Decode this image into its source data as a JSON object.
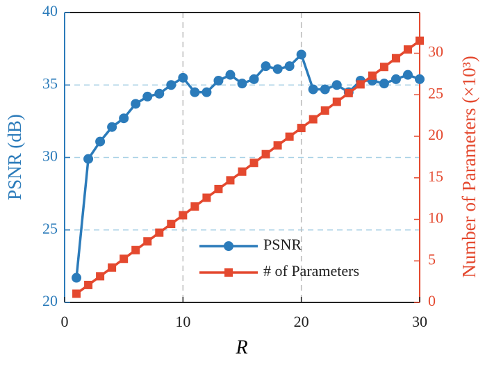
{
  "chart_data": {
    "type": "line",
    "xlabel": "R",
    "ylabel": "PSNR (dB)",
    "y2label": "Number of Parameters (×10³)",
    "x": [
      1,
      2,
      3,
      4,
      5,
      6,
      7,
      8,
      9,
      10,
      11,
      12,
      13,
      14,
      15,
      16,
      17,
      18,
      19,
      20,
      21,
      22,
      23,
      24,
      25,
      26,
      27,
      28,
      29,
      30
    ],
    "series": [
      {
        "name": "PSNR",
        "color": "#2b7bba",
        "marker": "circle",
        "values": [
          21.7,
          29.9,
          31.1,
          32.1,
          32.7,
          33.7,
          34.2,
          34.4,
          35.0,
          35.5,
          34.5,
          34.5,
          35.3,
          35.7,
          35.1,
          35.4,
          36.3,
          36.1,
          36.3,
          37.1,
          34.7,
          34.7,
          35.0,
          34.5,
          35.3,
          35.3,
          35.1,
          35.4,
          35.7,
          35.4
        ]
      },
      {
        "name": "# of Parameters",
        "color": "#e4492f",
        "marker": "square",
        "axis": "y2",
        "values": [
          1.05,
          2.1,
          3.15,
          4.2,
          5.25,
          6.3,
          7.35,
          8.4,
          9.45,
          10.5,
          11.55,
          12.6,
          13.65,
          14.7,
          15.75,
          16.8,
          17.85,
          18.9,
          19.95,
          21,
          22.05,
          23.1,
          24.15,
          25.2,
          26.25,
          27.3,
          28.35,
          29.4,
          30.45,
          31.5
        ]
      }
    ],
    "xlim": [
      0,
      30
    ],
    "xticks": [
      0,
      10,
      20,
      30
    ],
    "ylim": [
      20,
      40
    ],
    "yticks": [
      20,
      25,
      30,
      35,
      40
    ],
    "y2lim": [
      0,
      34.9
    ],
    "y2ticks": [
      0,
      5,
      10,
      15,
      20,
      25,
      30
    ],
    "grid": true,
    "legend": "lower center"
  }
}
